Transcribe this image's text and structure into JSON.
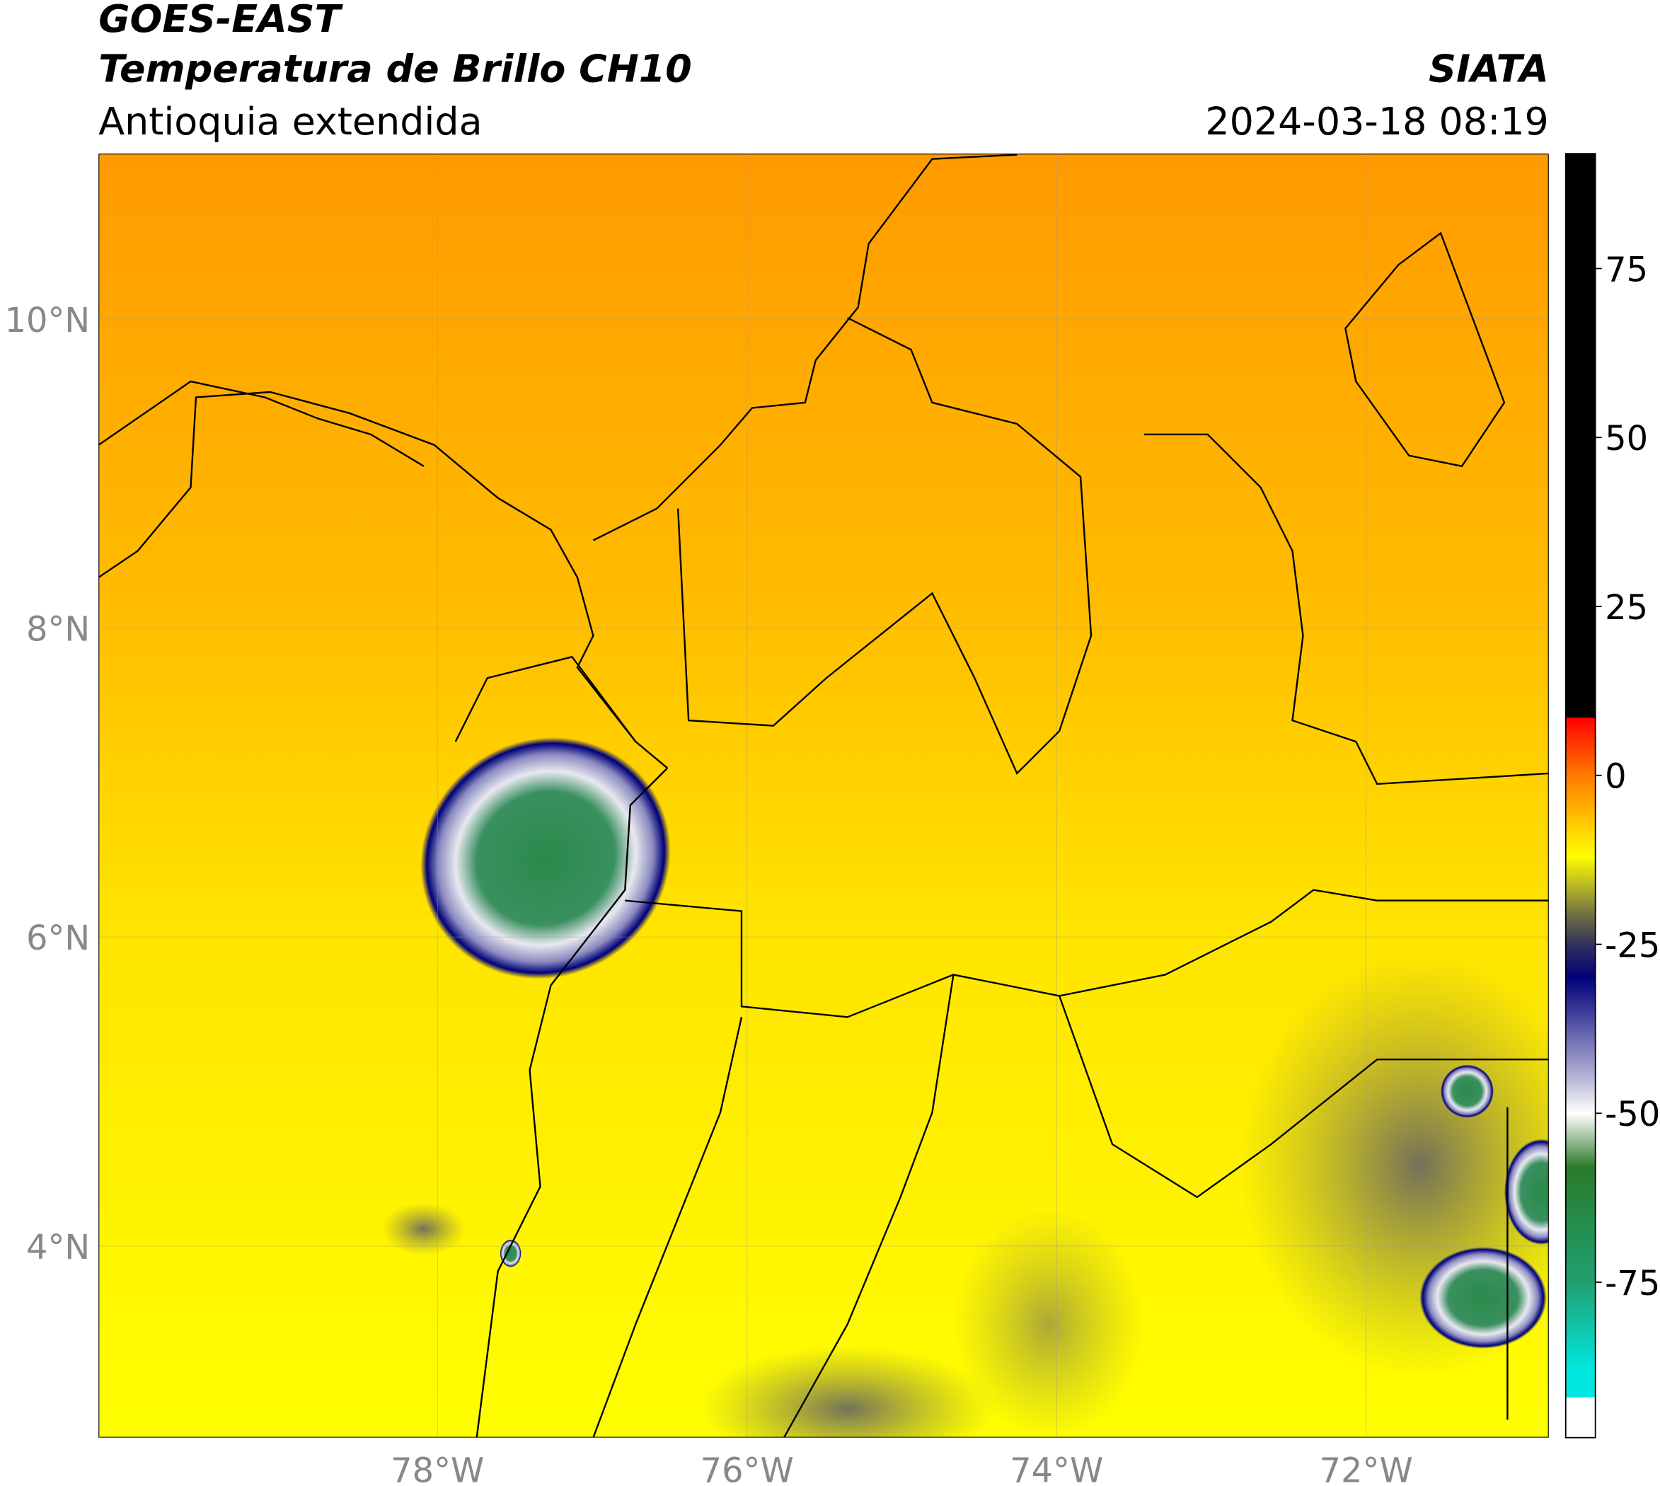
{
  "header": {
    "title": "GOES-EAST",
    "subtitle": "Temperatura de Brillo CH10",
    "region": "Antioquia extendida",
    "source": "SIATA",
    "datetime": "2024-03-18 08:19"
  },
  "map": {
    "lon_lim": [
      -80.19,
      -70.82
    ],
    "lat_lim": [
      2.76,
      11.07
    ],
    "lon_ticks": [
      {
        "value": -78,
        "label": "78°W"
      },
      {
        "value": -76,
        "label": "76°W"
      },
      {
        "value": -74,
        "label": "74°W"
      },
      {
        "value": -72,
        "label": "72°W"
      }
    ],
    "lat_ticks": [
      {
        "value": 10,
        "label": "10°N"
      },
      {
        "value": 8,
        "label": "8°N"
      },
      {
        "value": 6,
        "label": "6°N"
      },
      {
        "value": 4,
        "label": "4°N"
      }
    ]
  },
  "colorbar": {
    "lim": [
      -98,
      92
    ],
    "ticks": [
      75,
      50,
      25,
      0,
      -25,
      -50,
      -75
    ],
    "stops": [
      {
        "value": 92,
        "color": "#000000"
      },
      {
        "value": 8.6,
        "color": "#000000"
      },
      {
        "value": 8.5,
        "color": "#ff0000"
      },
      {
        "value": 0,
        "color": "#ff7a00"
      },
      {
        "value": -12,
        "color": "#ffff00"
      },
      {
        "value": -20,
        "color": "#7a7a40"
      },
      {
        "value": -25,
        "color": "#30305a"
      },
      {
        "value": -30,
        "color": "#00007a"
      },
      {
        "value": -45,
        "color": "#b8b8d8"
      },
      {
        "value": -50,
        "color": "#ffffff"
      },
      {
        "value": -58,
        "color": "#2a7a2a"
      },
      {
        "value": -75,
        "color": "#20a070"
      },
      {
        "value": -88,
        "color": "#00e8e0"
      },
      {
        "value": -92,
        "color": "#00e8e0"
      },
      {
        "value": -92.1,
        "color": "#ffffff"
      },
      {
        "value": -98,
        "color": "#ffffff"
      }
    ]
  }
}
